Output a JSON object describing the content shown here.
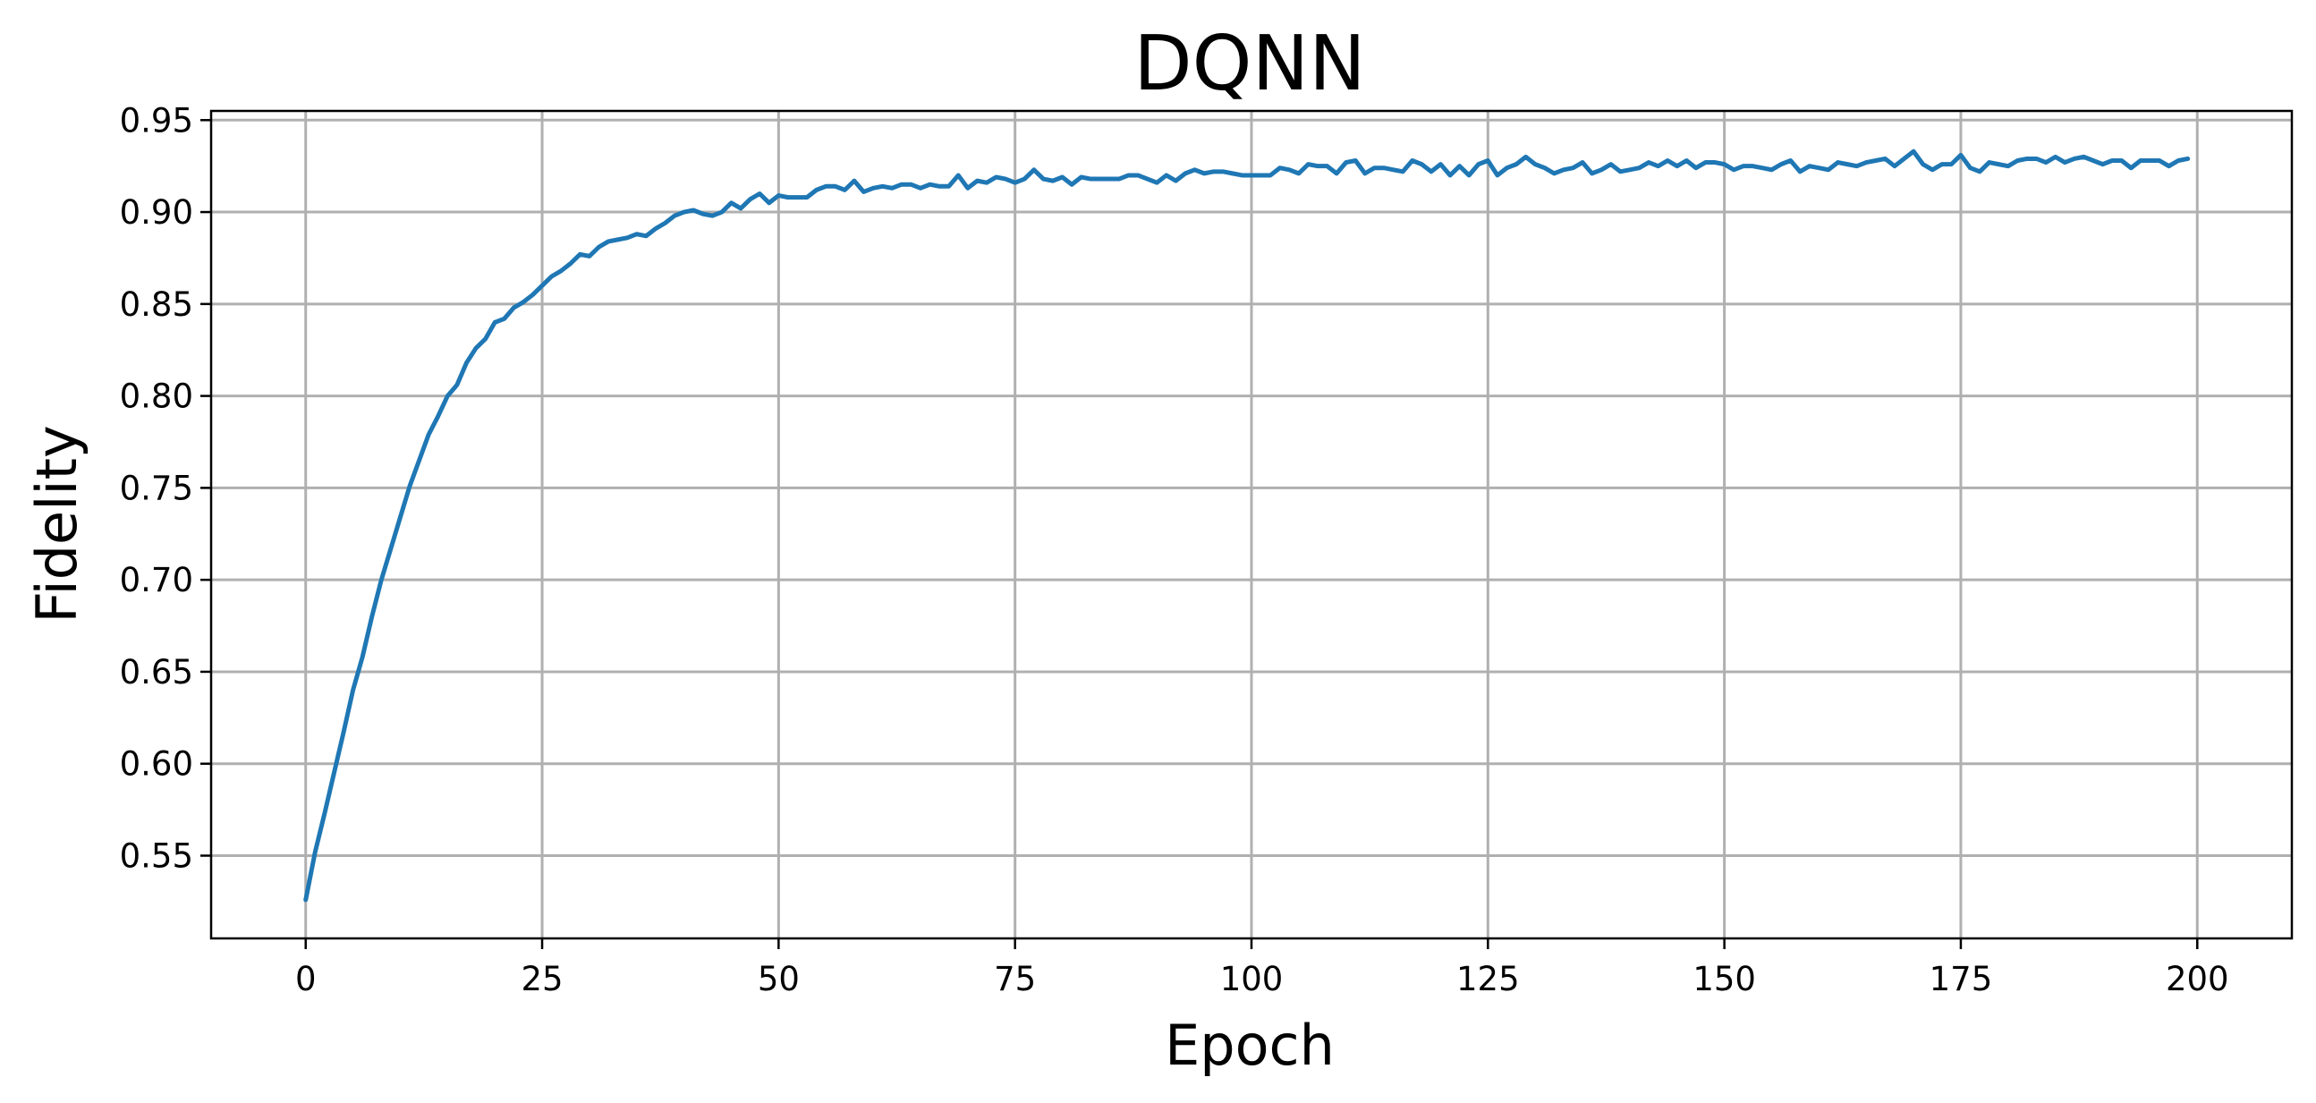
{
  "chart_data": {
    "type": "line",
    "title": "DQNN",
    "xlabel": "Epoch",
    "ylabel": "Fidelity",
    "xlim": [
      -10,
      210
    ],
    "ylim": [
      0.505,
      0.955
    ],
    "xticks": [
      0,
      25,
      50,
      75,
      100,
      125,
      150,
      175,
      200
    ],
    "xtick_labels": [
      "0",
      "25",
      "50",
      "75",
      "100",
      "125",
      "150",
      "175",
      "200"
    ],
    "yticks": [
      0.55,
      0.6,
      0.65,
      0.7,
      0.75,
      0.8,
      0.85,
      0.9,
      0.95
    ],
    "ytick_labels": [
      "0.55",
      "0.60",
      "0.65",
      "0.70",
      "0.75",
      "0.80",
      "0.85",
      "0.90",
      "0.95"
    ],
    "grid": true,
    "series": [
      {
        "color": "#1f77b4",
        "x_start": 0,
        "x_step": 1,
        "values": [
          0.526,
          0.552,
          0.573,
          0.595,
          0.617,
          0.64,
          0.658,
          0.68,
          0.7,
          0.717,
          0.734,
          0.751,
          0.765,
          0.779,
          0.789,
          0.8,
          0.806,
          0.818,
          0.826,
          0.831,
          0.84,
          0.842,
          0.848,
          0.851,
          0.855,
          0.86,
          0.865,
          0.868,
          0.872,
          0.877,
          0.876,
          0.881,
          0.884,
          0.885,
          0.886,
          0.888,
          0.887,
          0.891,
          0.894,
          0.898,
          0.9,
          0.901,
          0.899,
          0.898,
          0.9,
          0.905,
          0.902,
          0.907,
          0.91,
          0.905,
          0.909,
          0.908,
          0.908,
          0.908,
          0.912,
          0.914,
          0.914,
          0.912,
          0.917,
          0.911,
          0.913,
          0.914,
          0.913,
          0.915,
          0.915,
          0.913,
          0.915,
          0.914,
          0.914,
          0.92,
          0.913,
          0.917,
          0.916,
          0.919,
          0.918,
          0.916,
          0.918,
          0.923,
          0.918,
          0.917,
          0.919,
          0.915,
          0.919,
          0.918,
          0.918,
          0.918,
          0.918,
          0.92,
          0.92,
          0.918,
          0.916,
          0.92,
          0.917,
          0.921,
          0.923,
          0.921,
          0.922,
          0.922,
          0.921,
          0.92,
          0.92,
          0.92,
          0.92,
          0.924,
          0.923,
          0.921,
          0.926,
          0.925,
          0.925,
          0.921,
          0.927,
          0.928,
          0.921,
          0.924,
          0.924,
          0.923,
          0.922,
          0.928,
          0.926,
          0.922,
          0.926,
          0.92,
          0.925,
          0.92,
          0.926,
          0.928,
          0.92,
          0.924,
          0.926,
          0.93,
          0.926,
          0.924,
          0.921,
          0.923,
          0.924,
          0.927,
          0.921,
          0.923,
          0.926,
          0.922,
          0.923,
          0.924,
          0.927,
          0.925,
          0.928,
          0.925,
          0.928,
          0.924,
          0.927,
          0.927,
          0.926,
          0.923,
          0.925,
          0.925,
          0.924,
          0.923,
          0.926,
          0.928,
          0.922,
          0.925,
          0.924,
          0.923,
          0.927,
          0.926,
          0.925,
          0.927,
          0.928,
          0.929,
          0.925,
          0.929,
          0.933,
          0.926,
          0.923,
          0.926,
          0.926,
          0.931,
          0.924,
          0.922,
          0.927,
          0.926,
          0.925,
          0.928,
          0.929,
          0.929,
          0.927,
          0.93,
          0.927,
          0.929,
          0.93,
          0.928,
          0.926,
          0.928,
          0.928,
          0.924,
          0.928,
          0.928,
          0.928,
          0.925,
          0.928,
          0.929
        ]
      }
    ]
  }
}
